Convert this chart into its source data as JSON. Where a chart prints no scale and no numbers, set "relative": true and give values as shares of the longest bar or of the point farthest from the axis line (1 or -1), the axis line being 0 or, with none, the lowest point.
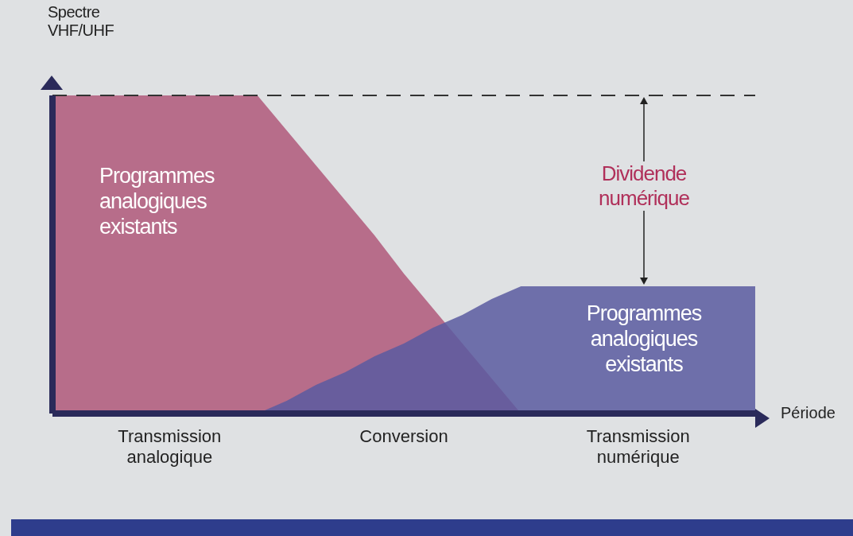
{
  "chart_data": {
    "type": "area",
    "relative": true,
    "ylabel": "Spectre VHF/UHF",
    "xlabel": "Période",
    "categories": [
      null,
      null,
      null,
      null,
      "Transmission analogique",
      null,
      null,
      null,
      null,
      null,
      null,
      null,
      "Conversion",
      null,
      null,
      null,
      null,
      null,
      null,
      null,
      "Transmission numérique",
      null,
      null,
      null,
      null
    ],
    "series": [
      {
        "name": "Programmes analogiques existants",
        "color": "#b0587a",
        "values": [
          1,
          1,
          1,
          1,
          1,
          1,
          1,
          1,
          0.89,
          0.78,
          0.67,
          0.56,
          0.44,
          0.33,
          0.22,
          0.11,
          0,
          null,
          null,
          null,
          null,
          null,
          null,
          null,
          null
        ]
      },
      {
        "name": "Programmes analogiques existants",
        "color": "#5a5aa0",
        "values": [
          null,
          null,
          null,
          null,
          null,
          null,
          null,
          0,
          0.04,
          0.09,
          0.13,
          0.18,
          0.22,
          0.27,
          0.31,
          0.36,
          0.4,
          0.4,
          0.4,
          0.4,
          0.4,
          0.4,
          0.4,
          0.4,
          0.4
        ]
      }
    ],
    "ref_lines": [
      {
        "axis": "y",
        "value": 1,
        "line_style": "dashed",
        "color": "#333333"
      }
    ],
    "annotations": [
      "Dividende numérique"
    ]
  }
}
